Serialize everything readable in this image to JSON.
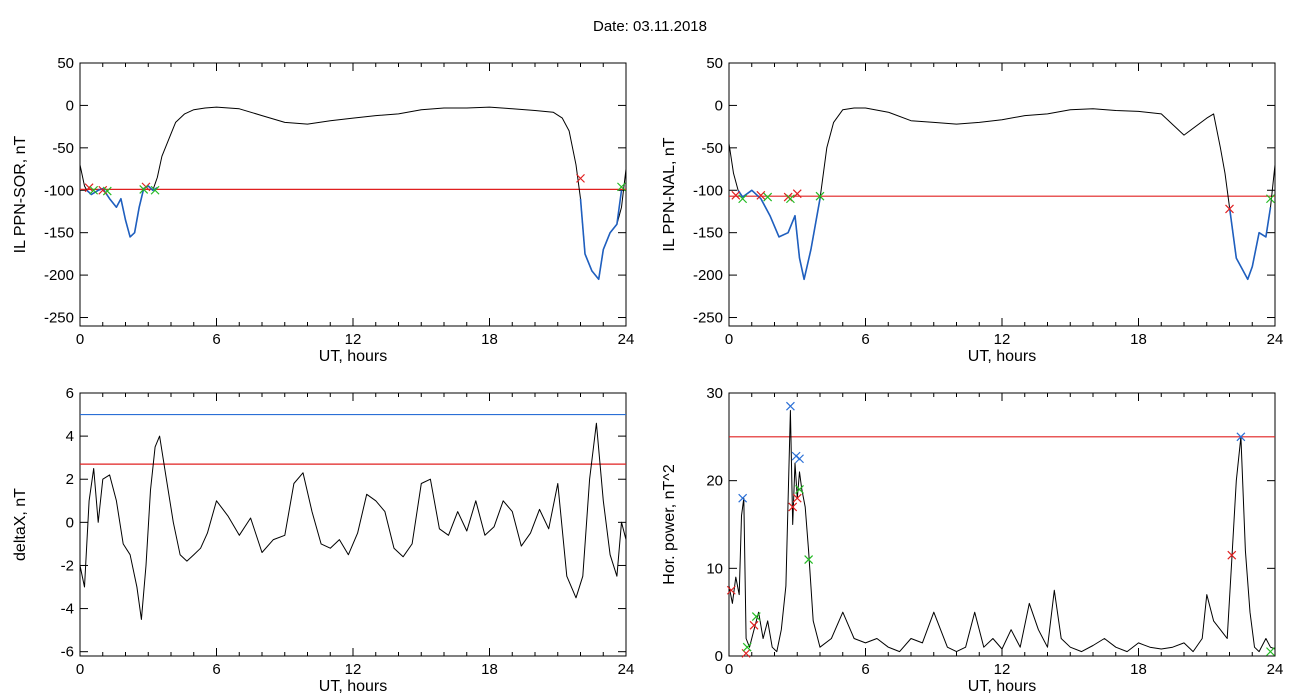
{
  "header": {
    "date_title": "Date:  03.11.2018"
  },
  "colors": {
    "trace": "#000000",
    "storm": "#1f5fbf",
    "threshold_red": "#e02020",
    "threshold_blue": "#2a6fd6",
    "marker_green": "#22bb22"
  },
  "chart_data": [
    {
      "type": "line",
      "id": "sor",
      "ylabel": "IL PPN-SOR, nT",
      "xlabel": "UT, hours",
      "xlim": [
        0,
        24
      ],
      "ylim": [
        -260,
        50
      ],
      "xticks": [
        "0",
        "6",
        "12",
        "18",
        "24"
      ],
      "yticks": [
        "50",
        "0",
        "-50",
        "-100",
        "-150",
        "-200",
        "-250"
      ],
      "ytick_values": [
        50,
        0,
        -50,
        -100,
        -150,
        -200,
        -250
      ],
      "hlines": [
        {
          "y": -99,
          "color": "#e02020"
        }
      ],
      "series": [
        {
          "role": "trace",
          "color": "#000000",
          "x": [
            0,
            0.2,
            0.3,
            0.5,
            0.8,
            1.0,
            1.3,
            1.6,
            1.8,
            2.0,
            2.2,
            2.4,
            2.6,
            2.8,
            3.0,
            3.2,
            3.4,
            3.6,
            3.9,
            4.2,
            4.6,
            5.0,
            5.5,
            6,
            7,
            8,
            9,
            10,
            11,
            12,
            13,
            14,
            15,
            16,
            17,
            18,
            19,
            20,
            20.8,
            21.2,
            21.5,
            21.8,
            22.0,
            22.2,
            22.5,
            22.8,
            23.0,
            23.3,
            23.6,
            23.8,
            24
          ],
          "y": [
            -70,
            -95,
            -100,
            -105,
            -100,
            -98,
            -110,
            -120,
            -110,
            -135,
            -155,
            -150,
            -120,
            -98,
            -95,
            -100,
            -85,
            -60,
            -40,
            -20,
            -10,
            -5,
            -3,
            -2,
            -4,
            -12,
            -20,
            -22,
            -18,
            -15,
            -12,
            -10,
            -5,
            -3,
            -3,
            -2,
            -4,
            -6,
            -8,
            -15,
            -30,
            -70,
            -110,
            -175,
            -195,
            -205,
            -170,
            -150,
            -140,
            -120,
            -75
          ]
        },
        {
          "role": "storm",
          "color": "#1f5fbf",
          "x": [
            0.3,
            0.5,
            0.8,
            1.0,
            1.3,
            1.6,
            1.8,
            2.0,
            2.2,
            2.4,
            2.6,
            2.8,
            3.0,
            3.2,
            3.4
          ],
          "y": [
            -100,
            -105,
            -100,
            -98,
            -110,
            -120,
            -110,
            -135,
            -155,
            -150,
            -120,
            -98,
            -95,
            -100,
            -97
          ]
        },
        {
          "role": "storm",
          "color": "#1f5fbf",
          "x": [
            22.0,
            22.2,
            22.5,
            22.8,
            23.0,
            23.3,
            23.6,
            23.8
          ],
          "y": [
            -110,
            -175,
            -195,
            -205,
            -170,
            -150,
            -140,
            -100
          ]
        }
      ],
      "markers": [
        {
          "x": 0.4,
          "y": -97,
          "color": "#e02020"
        },
        {
          "x": 1.0,
          "y": -100,
          "color": "#e02020"
        },
        {
          "x": 2.9,
          "y": -96,
          "color": "#e02020"
        },
        {
          "x": 22.0,
          "y": -86,
          "color": "#e02020"
        },
        {
          "x": 0.6,
          "y": -100,
          "color": "#22bb22"
        },
        {
          "x": 1.2,
          "y": -101,
          "color": "#22bb22"
        },
        {
          "x": 2.8,
          "y": -99,
          "color": "#22bb22"
        },
        {
          "x": 3.3,
          "y": -100,
          "color": "#22bb22"
        },
        {
          "x": 23.8,
          "y": -96,
          "color": "#22bb22"
        }
      ]
    },
    {
      "type": "line",
      "id": "nal",
      "ylabel": "IL PPN-NAL, nT",
      "xlabel": "UT, hours",
      "xlim": [
        0,
        24
      ],
      "ylim": [
        -260,
        50
      ],
      "xticks": [
        "0",
        "6",
        "12",
        "18",
        "24"
      ],
      "yticks": [
        "50",
        "0",
        "-50",
        "-100",
        "-150",
        "-200",
        "-250"
      ],
      "ytick_values": [
        50,
        0,
        -50,
        -100,
        -150,
        -200,
        -250
      ],
      "hlines": [
        {
          "y": -107,
          "color": "#e02020"
        }
      ],
      "series": [
        {
          "role": "trace",
          "color": "#000000",
          "x": [
            0,
            0.2,
            0.4,
            0.6,
            1.0,
            1.4,
            1.8,
            2.2,
            2.6,
            2.9,
            3.1,
            3.3,
            3.6,
            4.0,
            4.3,
            4.6,
            5.0,
            5.5,
            6,
            7,
            8,
            9,
            10,
            11,
            12,
            13,
            14,
            15,
            16,
            17,
            18,
            19,
            20,
            21,
            21.3,
            21.6,
            21.8,
            22.0,
            22.3,
            22.6,
            22.8,
            23.0,
            23.3,
            23.6,
            23.8,
            24
          ],
          "y": [
            -45,
            -80,
            -100,
            -108,
            -100,
            -110,
            -130,
            -155,
            -150,
            -130,
            -180,
            -205,
            -170,
            -110,
            -50,
            -20,
            -5,
            -3,
            -3,
            -8,
            -18,
            -20,
            -22,
            -20,
            -17,
            -12,
            -10,
            -5,
            -4,
            -6,
            -7,
            -10,
            -35,
            -15,
            -10,
            -50,
            -80,
            -120,
            -180,
            -195,
            -205,
            -190,
            -150,
            -155,
            -120,
            -70
          ]
        },
        {
          "role": "storm",
          "color": "#1f5fbf",
          "x": [
            0.4,
            0.6,
            1.0,
            1.4,
            1.8,
            2.2,
            2.6,
            2.9,
            3.1,
            3.3,
            3.6,
            4.0
          ],
          "y": [
            -100,
            -108,
            -100,
            -110,
            -130,
            -155,
            -150,
            -130,
            -180,
            -205,
            -170,
            -110
          ]
        },
        {
          "role": "storm",
          "color": "#1f5fbf",
          "x": [
            22.0,
            22.3,
            22.6,
            22.8,
            23.0,
            23.3,
            23.6,
            23.8
          ],
          "y": [
            -120,
            -180,
            -195,
            -205,
            -190,
            -150,
            -155,
            -120
          ]
        }
      ],
      "markers": [
        {
          "x": 0.3,
          "y": -106,
          "color": "#e02020"
        },
        {
          "x": 1.4,
          "y": -106,
          "color": "#e02020"
        },
        {
          "x": 2.6,
          "y": -108,
          "color": "#e02020"
        },
        {
          "x": 3.0,
          "y": -104,
          "color": "#e02020"
        },
        {
          "x": 22.0,
          "y": -122,
          "color": "#e02020"
        },
        {
          "x": 0.6,
          "y": -110,
          "color": "#22bb22"
        },
        {
          "x": 1.7,
          "y": -108,
          "color": "#22bb22"
        },
        {
          "x": 2.7,
          "y": -110,
          "color": "#22bb22"
        },
        {
          "x": 4.0,
          "y": -107,
          "color": "#22bb22"
        },
        {
          "x": 23.8,
          "y": -110,
          "color": "#22bb22"
        }
      ]
    },
    {
      "type": "line",
      "id": "deltax",
      "ylabel": "deltaX, nT",
      "xlabel": "UT, hours",
      "xlim": [
        0,
        24
      ],
      "ylim": [
        -6.2,
        6
      ],
      "xticks": [
        "0",
        "6",
        "12",
        "18",
        "24"
      ],
      "yticks": [
        "6",
        "4",
        "2",
        "0",
        "-2",
        "-4",
        "-6"
      ],
      "ytick_values": [
        6,
        4,
        2,
        0,
        -2,
        -4,
        -6
      ],
      "hlines": [
        {
          "y": 5.0,
          "color": "#2a6fd6"
        },
        {
          "y": 2.7,
          "color": "#e02020"
        }
      ],
      "series": [
        {
          "role": "trace",
          "color": "#000000",
          "x": [
            0,
            0.2,
            0.4,
            0.6,
            0.8,
            1.0,
            1.3,
            1.6,
            1.9,
            2.2,
            2.5,
            2.7,
            2.9,
            3.1,
            3.3,
            3.5,
            3.8,
            4.1,
            4.4,
            4.7,
            5.0,
            5.3,
            5.6,
            6.0,
            6.5,
            7.0,
            7.5,
            8.0,
            8.5,
            9.0,
            9.4,
            9.8,
            10.2,
            10.6,
            11.0,
            11.4,
            11.8,
            12.2,
            12.6,
            13.0,
            13.4,
            13.8,
            14.2,
            14.6,
            15.0,
            15.4,
            15.8,
            16.2,
            16.6,
            17.0,
            17.4,
            17.8,
            18.2,
            18.6,
            19.0,
            19.4,
            19.8,
            20.2,
            20.6,
            21.0,
            21.4,
            21.8,
            22.1,
            22.4,
            22.7,
            23.0,
            23.3,
            23.6,
            23.8,
            24
          ],
          "y": [
            -2,
            -3,
            1,
            2.5,
            0,
            2,
            2.2,
            1,
            -1,
            -1.5,
            -3,
            -4.5,
            -2,
            1.5,
            3.5,
            4,
            2,
            0,
            -1.5,
            -1.8,
            -1.5,
            -1.2,
            -0.5,
            1,
            0.3,
            -0.6,
            0.2,
            -1.4,
            -0.8,
            -0.6,
            1.8,
            2.3,
            0.5,
            -1,
            -1.2,
            -0.8,
            -1.5,
            -0.5,
            1.3,
            1,
            0.5,
            -1.2,
            -1.6,
            -1,
            1.8,
            2,
            -0.3,
            -0.6,
            0.5,
            -0.4,
            1,
            -0.6,
            -0.2,
            1,
            0.5,
            -1.1,
            -0.5,
            0.6,
            -0.3,
            1.8,
            -2.5,
            -3.5,
            -2.5,
            2,
            4.6,
            1,
            -1.5,
            -2.5,
            0,
            -0.8
          ]
        }
      ],
      "markers": []
    },
    {
      "type": "line",
      "id": "power",
      "ylabel": "Hor. power, nT^2",
      "xlabel": "UT, hours",
      "xlim": [
        0,
        24
      ],
      "ylim": [
        0,
        30
      ],
      "xticks": [
        "0",
        "6",
        "12",
        "18",
        "24"
      ],
      "yticks": [
        "30",
        "20",
        "10",
        "0"
      ],
      "ytick_values": [
        30,
        20,
        10,
        0
      ],
      "hlines": [
        {
          "y": 25,
          "color": "#e02020"
        }
      ],
      "series": [
        {
          "role": "trace",
          "color": "#000000",
          "x": [
            0,
            0.15,
            0.3,
            0.45,
            0.55,
            0.65,
            0.75,
            0.9,
            1.1,
            1.3,
            1.5,
            1.7,
            1.9,
            2.1,
            2.3,
            2.5,
            2.7,
            2.8,
            2.9,
            3.0,
            3.1,
            3.2,
            3.35,
            3.5,
            3.7,
            4.0,
            4.5,
            5.0,
            5.5,
            6.0,
            6.5,
            7.0,
            7.5,
            8.0,
            8.5,
            9.0,
            9.3,
            9.6,
            10.0,
            10.4,
            10.8,
            11.2,
            11.6,
            12.0,
            12.4,
            12.8,
            13.2,
            13.6,
            14.0,
            14.3,
            14.6,
            15.0,
            15.5,
            16.0,
            16.5,
            17.0,
            17.5,
            18.0,
            18.5,
            19.0,
            19.5,
            20.0,
            20.4,
            20.8,
            21.0,
            21.3,
            21.6,
            21.9,
            22.1,
            22.3,
            22.5,
            22.7,
            22.9,
            23.1,
            23.3,
            23.6,
            23.8,
            24
          ],
          "y": [
            8,
            6,
            9,
            7,
            16,
            18,
            2,
            1,
            3,
            5,
            2,
            4,
            1,
            0.5,
            3,
            8,
            28,
            15,
            22,
            18,
            21,
            19,
            17,
            12,
            4,
            1,
            2,
            5,
            2,
            1.5,
            2,
            1,
            0.5,
            2,
            1.5,
            5,
            3,
            1,
            0.5,
            1,
            5,
            1,
            2,
            0.8,
            3,
            1,
            6,
            3,
            1,
            7.5,
            2,
            1,
            0.5,
            1.2,
            2,
            1,
            0.5,
            1.5,
            1,
            0.8,
            1,
            1.5,
            0.5,
            2,
            7,
            4,
            3,
            2,
            11,
            20,
            25,
            12,
            5,
            1,
            0.5,
            2,
            1,
            0.8
          ]
        }
      ],
      "markers": [
        {
          "x": 0.6,
          "y": 18,
          "color": "#2a6fd6"
        },
        {
          "x": 2.7,
          "y": 28.5,
          "color": "#2a6fd6"
        },
        {
          "x": 2.95,
          "y": 22.8,
          "color": "#2a6fd6"
        },
        {
          "x": 3.1,
          "y": 22.5,
          "color": "#2a6fd6"
        },
        {
          "x": 22.5,
          "y": 25,
          "color": "#2a6fd6"
        },
        {
          "x": 0.1,
          "y": 7.5,
          "color": "#e02020"
        },
        {
          "x": 0.75,
          "y": 0.3,
          "color": "#e02020"
        },
        {
          "x": 1.1,
          "y": 3.5,
          "color": "#e02020"
        },
        {
          "x": 2.8,
          "y": 17,
          "color": "#e02020"
        },
        {
          "x": 3.0,
          "y": 18,
          "color": "#e02020"
        },
        {
          "x": 22.1,
          "y": 11.5,
          "color": "#e02020"
        },
        {
          "x": 0.8,
          "y": 1,
          "color": "#22bb22"
        },
        {
          "x": 1.2,
          "y": 4.5,
          "color": "#22bb22"
        },
        {
          "x": 3.1,
          "y": 19,
          "color": "#22bb22"
        },
        {
          "x": 3.5,
          "y": 11,
          "color": "#22bb22"
        },
        {
          "x": 23.8,
          "y": 0.5,
          "color": "#22bb22"
        }
      ]
    }
  ]
}
